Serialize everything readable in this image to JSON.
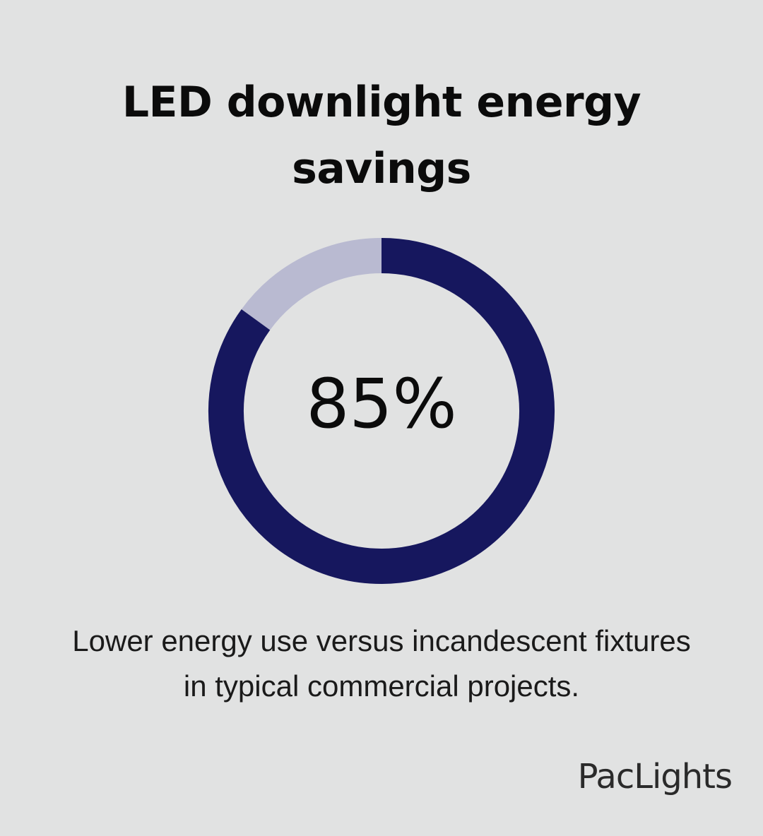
{
  "title": "LED downlight energy savings",
  "chart_data": {
    "type": "pie",
    "variant": "donut",
    "values": [
      85,
      15
    ],
    "center_label": "85%",
    "colors": {
      "filled": "#16175e",
      "remainder": "#b9bad1"
    }
  },
  "caption": "Lower energy use versus incandescent fixtures in typical commercial projects.",
  "brand": "PacLights",
  "colors": {
    "background": "#e1e2e2",
    "text": "#0b0b0b"
  }
}
